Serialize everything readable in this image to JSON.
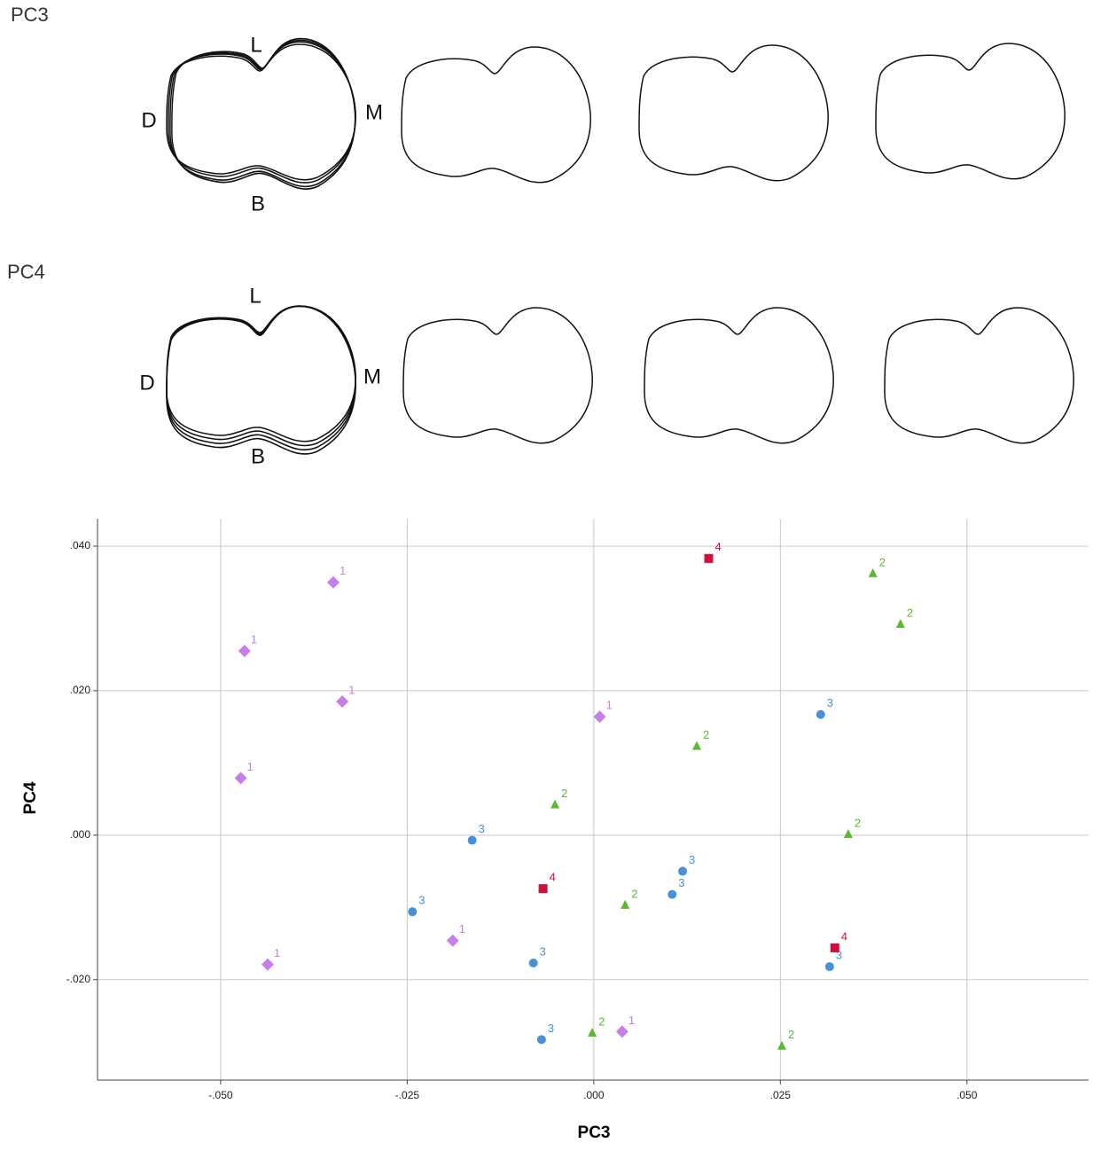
{
  "shape_rows": [
    {
      "title": "PC3",
      "landmarks": {
        "L": "L",
        "D": "D",
        "M": "M",
        "B": "B"
      }
    },
    {
      "title": "PC4",
      "landmarks": {
        "L": "L",
        "D": "D",
        "M": "M",
        "B": "B"
      }
    }
  ],
  "chart_data": {
    "type": "scatter",
    "x_label": "PC3",
    "y_label": "PC4",
    "xlim": [
      -0.0665,
      0.0663
    ],
    "ylim": [
      -0.0339,
      0.0438
    ],
    "xticks": [
      {
        "value": -0.05,
        "label": "-.050"
      },
      {
        "value": -0.025,
        "label": "-.025"
      },
      {
        "value": 0,
        "label": ".000"
      },
      {
        "value": 0.025,
        "label": ".025"
      },
      {
        "value": 0.05,
        "label": ".050"
      }
    ],
    "yticks": [
      {
        "value": -0.02,
        "label": "-.020"
      },
      {
        "value": 0,
        "label": ".000"
      },
      {
        "value": 0.02,
        "label": ".020"
      },
      {
        "value": 0.04,
        "label": ".040"
      }
    ],
    "grid": true,
    "series": [
      {
        "name": "1",
        "color": "#c77ee8",
        "marker": "diamond",
        "x": [
          -0.0349,
          -0.0468,
          -0.0337,
          -0.0473,
          0.0008,
          -0.0189,
          -0.0437,
          0.0038
        ],
        "y": [
          0.035,
          0.0255,
          0.0185,
          0.0079,
          0.0164,
          -0.0146,
          -0.0179,
          -0.0272
        ]
      },
      {
        "name": "2",
        "color": "#5cb82e",
        "marker": "triangle",
        "x": [
          0.0374,
          0.0411,
          0.0138,
          -0.0052,
          0.0341,
          0.0042,
          -0.0002,
          0.0252
        ],
        "y": [
          0.0362,
          0.0292,
          0.0123,
          0.0042,
          0.0001,
          -0.0097,
          -0.0274,
          -0.0292
        ]
      },
      {
        "name": "3",
        "color": "#4a90d9",
        "marker": "circle",
        "x": [
          0.0304,
          -0.0163,
          0.0119,
          0.0105,
          -0.0243,
          -0.0081,
          0.0316,
          -0.007
        ],
        "y": [
          0.0167,
          -0.0007,
          -0.005,
          -0.0082,
          -0.0106,
          -0.0177,
          -0.0182,
          -0.0283
        ]
      },
      {
        "name": "4",
        "color": "#d0103a",
        "marker": "square",
        "x": [
          0.0154,
          -0.0068,
          0.0323
        ],
        "y": [
          0.0383,
          -0.0074,
          -0.0156
        ]
      }
    ]
  }
}
